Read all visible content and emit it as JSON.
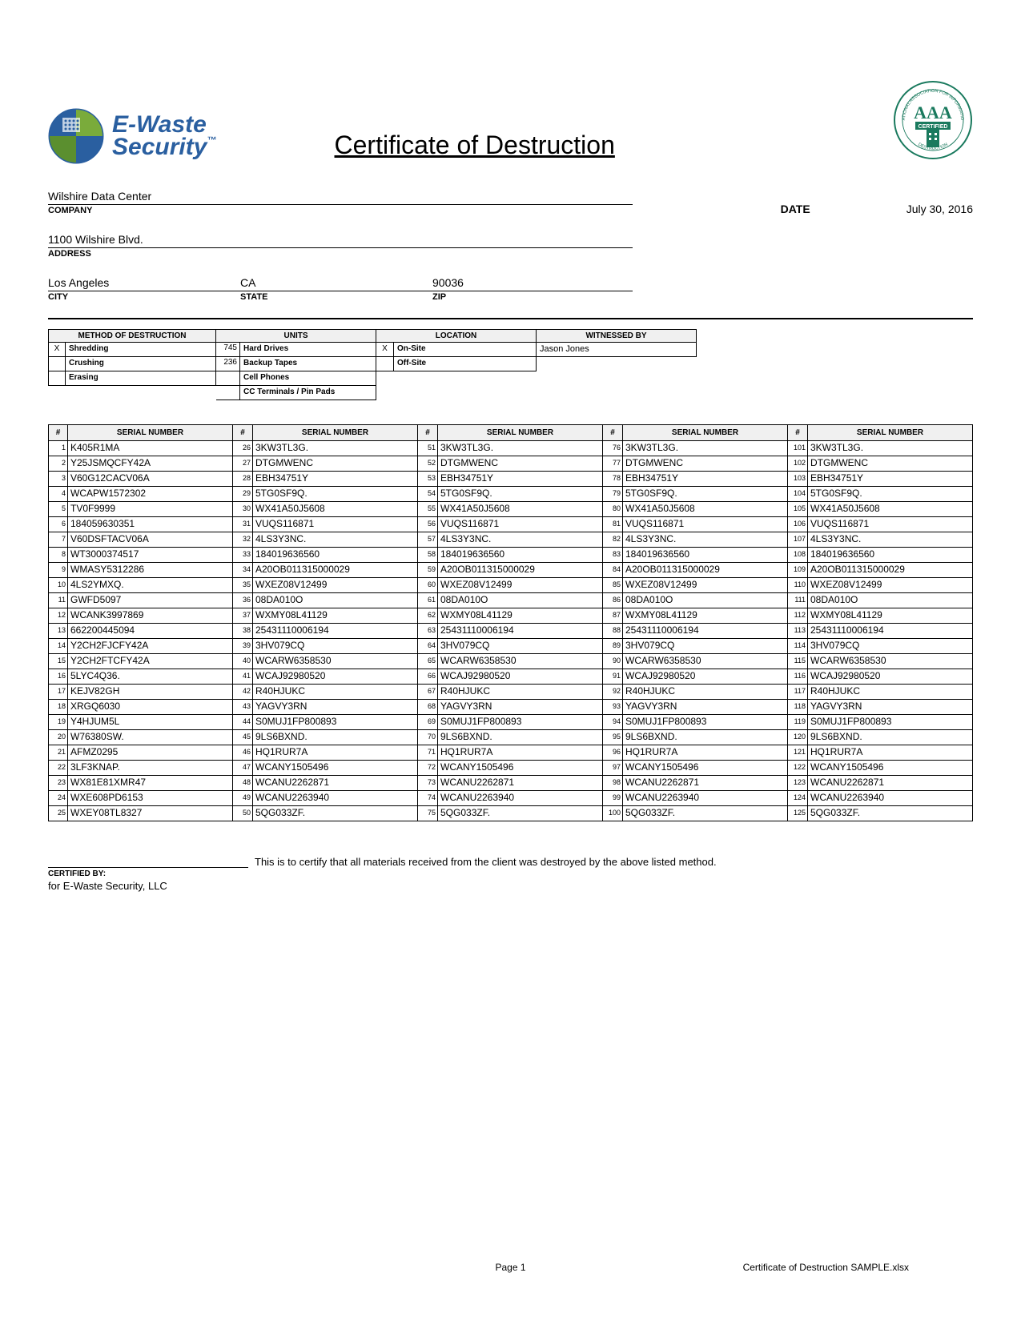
{
  "logo": {
    "line1": "E-Waste",
    "line2": "Security",
    "text_color": "#2a5fa0",
    "globe_colors": [
      "#7aab3b",
      "#2a5fa0",
      "#f5a623",
      "#5b8f2f"
    ]
  },
  "badge": {
    "text": "AAA",
    "sub": "CERTIFIED",
    "ring1": "ASSOCIATION FOR INFORMATION",
    "ring2": "DESTRUCTION",
    "color": "#1a7a5e"
  },
  "title": "Certificate of Destruction",
  "company": {
    "value": "Wilshire Data Center",
    "label": "COMPANY"
  },
  "address": {
    "value": "1100 Wilshire Blvd.",
    "label": "ADDRESS"
  },
  "city": {
    "value": "Los Angeles",
    "label": "CITY"
  },
  "state": {
    "value": "CA",
    "label": "STATE"
  },
  "zip": {
    "value": "90036",
    "label": "ZIP"
  },
  "date": {
    "label": "DATE",
    "value": "July 30, 2016"
  },
  "method_header": "METHOD OF DESTRUCTION",
  "units_header": "UNITS",
  "location_header": "LOCATION",
  "witnessed_header": "WITNESSED BY",
  "methods": [
    {
      "checked": "X",
      "label": "Shredding"
    },
    {
      "checked": "",
      "label": "Crushing"
    },
    {
      "checked": "",
      "label": "Erasing"
    }
  ],
  "units": [
    {
      "count": "745",
      "label": "Hard Drives"
    },
    {
      "count": "236",
      "label": "Backup Tapes"
    },
    {
      "count": "",
      "label": "Cell Phones"
    },
    {
      "count": "",
      "label": "CC Terminals / Pin Pads"
    }
  ],
  "locations": [
    {
      "checked": "X",
      "label": "On-Site"
    },
    {
      "checked": "",
      "label": "Off-Site"
    }
  ],
  "witness": "Jason Jones",
  "serial_col_headers": {
    "num": "#",
    "text": "SERIAL NUMBER"
  },
  "serials": {
    "col1": [
      {
        "n": "1",
        "v": "K405R1MA"
      },
      {
        "n": "2",
        "v": "Y25JSMQCFY42A"
      },
      {
        "n": "3",
        "v": "V60G12CACV06A"
      },
      {
        "n": "4",
        "v": "WCAPW1572302"
      },
      {
        "n": "5",
        "v": "TV0F9999"
      },
      {
        "n": "6",
        "v": "184059630351"
      },
      {
        "n": "7",
        "v": "V60DSFTACV06A"
      },
      {
        "n": "8",
        "v": "WT3000374517"
      },
      {
        "n": "9",
        "v": "WMASY5312286"
      },
      {
        "n": "10",
        "v": "4LS2YMXQ."
      },
      {
        "n": "11",
        "v": "GWFD5097"
      },
      {
        "n": "12",
        "v": "WCANK3997869"
      },
      {
        "n": "13",
        "v": "662200445094"
      },
      {
        "n": "14",
        "v": "Y2CH2FJCFY42A"
      },
      {
        "n": "15",
        "v": "Y2CH2FTCFY42A"
      },
      {
        "n": "16",
        "v": "5LYC4Q36."
      },
      {
        "n": "17",
        "v": "KEJV82GH"
      },
      {
        "n": "18",
        "v": "XRGQ6030"
      },
      {
        "n": "19",
        "v": "Y4HJUM5L"
      },
      {
        "n": "20",
        "v": "W76380SW."
      },
      {
        "n": "21",
        "v": "AFMZ0295"
      },
      {
        "n": "22",
        "v": "3LF3KNAP."
      },
      {
        "n": "23",
        "v": "WX81E81XMR47"
      },
      {
        "n": "24",
        "v": "WXE608PD6153"
      },
      {
        "n": "25",
        "v": "WXEY08TL8327"
      }
    ],
    "col2": [
      {
        "n": "26",
        "v": "3KW3TL3G."
      },
      {
        "n": "27",
        "v": "DTGMWENC"
      },
      {
        "n": "28",
        "v": "EBH34751Y"
      },
      {
        "n": "29",
        "v": "5TG0SF9Q."
      },
      {
        "n": "30",
        "v": "WX41A50J5608"
      },
      {
        "n": "31",
        "v": "VUQS116871"
      },
      {
        "n": "32",
        "v": "4LS3Y3NC."
      },
      {
        "n": "33",
        "v": "184019636560"
      },
      {
        "n": "34",
        "v": "A20OB011315000029"
      },
      {
        "n": "35",
        "v": "WXEZ08V12499"
      },
      {
        "n": "36",
        "v": "08DA010O"
      },
      {
        "n": "37",
        "v": "WXMY08L41129"
      },
      {
        "n": "38",
        "v": "25431110006194"
      },
      {
        "n": "39",
        "v": "3HV079CQ"
      },
      {
        "n": "40",
        "v": "WCARW6358530"
      },
      {
        "n": "41",
        "v": "WCAJ92980520"
      },
      {
        "n": "42",
        "v": "R40HJUKC"
      },
      {
        "n": "43",
        "v": "YAGVY3RN"
      },
      {
        "n": "44",
        "v": "S0MUJ1FP800893"
      },
      {
        "n": "45",
        "v": "9LS6BXND."
      },
      {
        "n": "46",
        "v": "HQ1RUR7A"
      },
      {
        "n": "47",
        "v": "WCANY1505496"
      },
      {
        "n": "48",
        "v": "WCANU2262871"
      },
      {
        "n": "49",
        "v": "WCANU2263940"
      },
      {
        "n": "50",
        "v": "5QG033ZF."
      }
    ],
    "col3": [
      {
        "n": "51",
        "v": "3KW3TL3G."
      },
      {
        "n": "52",
        "v": "DTGMWENC"
      },
      {
        "n": "53",
        "v": "EBH34751Y"
      },
      {
        "n": "54",
        "v": "5TG0SF9Q."
      },
      {
        "n": "55",
        "v": "WX41A50J5608"
      },
      {
        "n": "56",
        "v": "VUQS116871"
      },
      {
        "n": "57",
        "v": "4LS3Y3NC."
      },
      {
        "n": "58",
        "v": "184019636560"
      },
      {
        "n": "59",
        "v": "A20OB011315000029"
      },
      {
        "n": "60",
        "v": "WXEZ08V12499"
      },
      {
        "n": "61",
        "v": "08DA010O"
      },
      {
        "n": "62",
        "v": "WXMY08L41129"
      },
      {
        "n": "63",
        "v": "25431110006194"
      },
      {
        "n": "64",
        "v": "3HV079CQ"
      },
      {
        "n": "65",
        "v": "WCARW6358530"
      },
      {
        "n": "66",
        "v": "WCAJ92980520"
      },
      {
        "n": "67",
        "v": "R40HJUKC"
      },
      {
        "n": "68",
        "v": "YAGVY3RN"
      },
      {
        "n": "69",
        "v": "S0MUJ1FP800893"
      },
      {
        "n": "70",
        "v": "9LS6BXND."
      },
      {
        "n": "71",
        "v": "HQ1RUR7A"
      },
      {
        "n": "72",
        "v": "WCANY1505496"
      },
      {
        "n": "73",
        "v": "WCANU2262871"
      },
      {
        "n": "74",
        "v": "WCANU2263940"
      },
      {
        "n": "75",
        "v": "5QG033ZF."
      }
    ],
    "col4": [
      {
        "n": "76",
        "v": "3KW3TL3G."
      },
      {
        "n": "77",
        "v": "DTGMWENC"
      },
      {
        "n": "78",
        "v": "EBH34751Y"
      },
      {
        "n": "79",
        "v": "5TG0SF9Q."
      },
      {
        "n": "80",
        "v": "WX41A50J5608"
      },
      {
        "n": "81",
        "v": "VUQS116871"
      },
      {
        "n": "82",
        "v": "4LS3Y3NC."
      },
      {
        "n": "83",
        "v": "184019636560"
      },
      {
        "n": "84",
        "v": "A20OB011315000029"
      },
      {
        "n": "85",
        "v": "WXEZ08V12499"
      },
      {
        "n": "86",
        "v": "08DA010O"
      },
      {
        "n": "87",
        "v": "WXMY08L41129"
      },
      {
        "n": "88",
        "v": "25431110006194"
      },
      {
        "n": "89",
        "v": "3HV079CQ"
      },
      {
        "n": "90",
        "v": "WCARW6358530"
      },
      {
        "n": "91",
        "v": "WCAJ92980520"
      },
      {
        "n": "92",
        "v": "R40HJUKC"
      },
      {
        "n": "93",
        "v": "YAGVY3RN"
      },
      {
        "n": "94",
        "v": "S0MUJ1FP800893"
      },
      {
        "n": "95",
        "v": "9LS6BXND."
      },
      {
        "n": "96",
        "v": "HQ1RUR7A"
      },
      {
        "n": "97",
        "v": "WCANY1505496"
      },
      {
        "n": "98",
        "v": "WCANU2262871"
      },
      {
        "n": "99",
        "v": "WCANU2263940"
      },
      {
        "n": "100",
        "v": "5QG033ZF."
      }
    ],
    "col5": [
      {
        "n": "101",
        "v": "3KW3TL3G."
      },
      {
        "n": "102",
        "v": "DTGMWENC"
      },
      {
        "n": "103",
        "v": "EBH34751Y"
      },
      {
        "n": "104",
        "v": "5TG0SF9Q."
      },
      {
        "n": "105",
        "v": "WX41A50J5608"
      },
      {
        "n": "106",
        "v": "VUQS116871"
      },
      {
        "n": "107",
        "v": "4LS3Y3NC."
      },
      {
        "n": "108",
        "v": "184019636560"
      },
      {
        "n": "109",
        "v": "A20OB011315000029"
      },
      {
        "n": "110",
        "v": "WXEZ08V12499"
      },
      {
        "n": "111",
        "v": "08DA010O"
      },
      {
        "n": "112",
        "v": "WXMY08L41129"
      },
      {
        "n": "113",
        "v": "25431110006194"
      },
      {
        "n": "114",
        "v": "3HV079CQ"
      },
      {
        "n": "115",
        "v": "WCARW6358530"
      },
      {
        "n": "116",
        "v": "WCAJ92980520"
      },
      {
        "n": "117",
        "v": "R40HJUKC"
      },
      {
        "n": "118",
        "v": "YAGVY3RN"
      },
      {
        "n": "119",
        "v": "S0MUJ1FP800893"
      },
      {
        "n": "120",
        "v": "9LS6BXND."
      },
      {
        "n": "121",
        "v": "HQ1RUR7A"
      },
      {
        "n": "122",
        "v": "WCANY1505496"
      },
      {
        "n": "123",
        "v": "WCANU2262871"
      },
      {
        "n": "124",
        "v": "WCANU2263940"
      },
      {
        "n": "125",
        "v": "5QG033ZF."
      }
    ]
  },
  "cert": {
    "text": "This is to certify that all materials received from the client was destroyed by the above listed method.",
    "label": "CERTIFIED BY:",
    "for": "for E-Waste Security, LLC"
  },
  "footer": {
    "page": "Page 1",
    "file": "Certificate of Destruction SAMPLE.xlsx"
  }
}
